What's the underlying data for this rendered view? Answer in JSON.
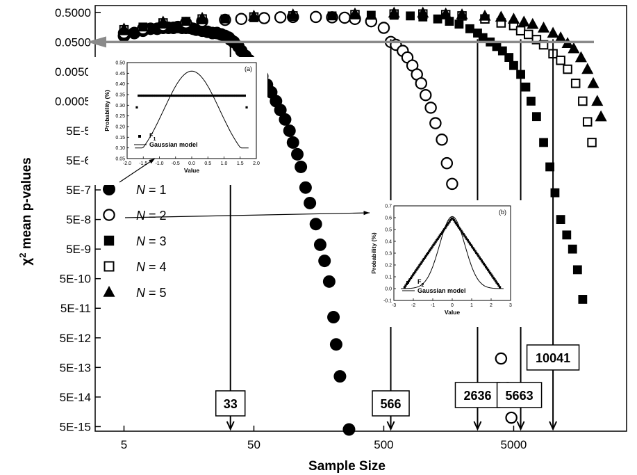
{
  "chart_data": {
    "type": "scatter",
    "xlabel": "Sample Size",
    "ylabel": "χ2 mean p-values",
    "x_scale": "log",
    "x_ticks": [
      {
        "value": 5,
        "label": "5"
      },
      {
        "value": 50,
        "label": "50"
      },
      {
        "value": 500,
        "label": "500"
      },
      {
        "value": 5000,
        "label": "5000"
      }
    ],
    "y_ticks": [
      {
        "value": 0.5,
        "label": "0.5000"
      },
      {
        "value": 0.05,
        "label": "0.0500"
      },
      {
        "value": 0.005,
        "label": "0.0050"
      },
      {
        "value": 0.0005,
        "label": "0.0005"
      },
      {
        "value": 5e-05,
        "label": "5E-5"
      },
      {
        "value": 5e-06,
        "label": "5E-6"
      },
      {
        "value": 5e-07,
        "label": "5E-7"
      },
      {
        "value": 5e-08,
        "label": "5E-8"
      },
      {
        "value": 5e-09,
        "label": "5E-9"
      },
      {
        "value": 5e-10,
        "label": "5E-10"
      },
      {
        "value": 5e-11,
        "label": "5E-11"
      },
      {
        "value": 5e-12,
        "label": "5E-12"
      },
      {
        "value": 5e-13,
        "label": "5E-13"
      },
      {
        "value": 5e-14,
        "label": "5E-14"
      },
      {
        "value": 5e-15,
        "label": "5E-15"
      }
    ],
    "series": [
      {
        "name": "N = 1",
        "marker": "circle-filled",
        "points": [
          [
            5,
            0.08
          ],
          [
            6,
            0.1
          ],
          [
            7,
            0.12
          ],
          [
            8,
            0.14
          ],
          [
            9,
            0.14
          ],
          [
            10,
            0.15
          ],
          [
            11,
            0.15
          ],
          [
            12,
            0.15
          ],
          [
            13,
            0.16
          ],
          [
            14,
            0.15
          ],
          [
            15,
            0.15
          ],
          [
            16,
            0.15
          ],
          [
            17,
            0.14
          ],
          [
            18,
            0.13
          ],
          [
            19,
            0.13
          ],
          [
            20,
            0.12
          ],
          [
            22,
            0.11
          ],
          [
            24,
            0.1
          ],
          [
            26,
            0.1
          ],
          [
            28,
            0.09
          ],
          [
            30,
            0.08
          ],
          [
            32,
            0.07
          ],
          [
            33,
            0.06
          ],
          [
            35,
            0.05
          ],
          [
            38,
            0.035
          ],
          [
            40,
            0.025
          ],
          [
            43,
            0.017
          ],
          [
            46,
            0.012
          ],
          [
            50,
            0.008
          ],
          [
            54,
            0.0055
          ],
          [
            58,
            0.0035
          ],
          [
            63,
            0.0018
          ],
          [
            68,
            0.001
          ],
          [
            74,
            0.0005
          ],
          [
            80,
            0.00025
          ],
          [
            87,
            0.00012
          ],
          [
            94,
            5e-05
          ],
          [
            100,
            2e-05
          ],
          [
            108,
            8e-06
          ],
          [
            115,
            3e-06
          ],
          [
            125,
            6e-07
          ],
          [
            135,
            1.8e-07
          ],
          [
            150,
            3.5e-08
          ],
          [
            162,
            7e-09
          ],
          [
            175,
            2e-09
          ],
          [
            190,
            4e-10
          ],
          [
            205,
            2.5e-11
          ],
          [
            215,
            3e-12
          ],
          [
            230,
            2.5e-13
          ],
          [
            270,
            4e-15
          ]
        ]
      },
      {
        "name": "N = 2",
        "marker": "circle-open",
        "points": [
          [
            5,
            0.1
          ],
          [
            7,
            0.14
          ],
          [
            10,
            0.18
          ],
          [
            15,
            0.22
          ],
          [
            20,
            0.25
          ],
          [
            30,
            0.28
          ],
          [
            40,
            0.3
          ],
          [
            60,
            0.32
          ],
          [
            80,
            0.34
          ],
          [
            100,
            0.35
          ],
          [
            150,
            0.35
          ],
          [
            200,
            0.34
          ],
          [
            250,
            0.33
          ],
          [
            300,
            0.3
          ],
          [
            400,
            0.25
          ],
          [
            500,
            0.15
          ],
          [
            566,
            0.05
          ],
          [
            620,
            0.04
          ],
          [
            700,
            0.025
          ],
          [
            760,
            0.015
          ],
          [
            830,
            0.008
          ],
          [
            900,
            0.004
          ],
          [
            970,
            0.002
          ],
          [
            1050,
            0.0008
          ],
          [
            1150,
            0.0003
          ],
          [
            1250,
            9e-05
          ],
          [
            1400,
            2.5e-05
          ],
          [
            1530,
            4e-06
          ],
          [
            1680,
            8e-07
          ],
          [
            1850,
            1e-07
          ],
          [
            2050,
            2e-08
          ],
          [
            2250,
            4e-09
          ],
          [
            2450,
            6e-10
          ],
          [
            2700,
            1e-10
          ],
          [
            3200,
            2e-11
          ],
          [
            4000,
            1e-12
          ],
          [
            4500,
            1e-13
          ],
          [
            4800,
            1e-14
          ]
        ]
      },
      {
        "name": "N = 3",
        "marker": "square-filled",
        "points": [
          [
            5,
            0.12
          ],
          [
            7,
            0.16
          ],
          [
            10,
            0.2
          ],
          [
            15,
            0.25
          ],
          [
            20,
            0.28
          ],
          [
            30,
            0.3
          ],
          [
            50,
            0.33
          ],
          [
            100,
            0.36
          ],
          [
            200,
            0.38
          ],
          [
            400,
            0.4
          ],
          [
            600,
            0.4
          ],
          [
            800,
            0.38
          ],
          [
            1000,
            0.35
          ],
          [
            1300,
            0.3
          ],
          [
            1600,
            0.25
          ],
          [
            1900,
            0.2
          ],
          [
            2300,
            0.14
          ],
          [
            2636,
            0.1
          ],
          [
            2900,
            0.07
          ],
          [
            3300,
            0.05
          ],
          [
            3700,
            0.035
          ],
          [
            4100,
            0.025
          ],
          [
            4600,
            0.015
          ],
          [
            5000,
            0.008
          ],
          [
            5663,
            0.004
          ],
          [
            6200,
            0.0015
          ],
          [
            6800,
            0.0005
          ],
          [
            7500,
            0.00015
          ],
          [
            8500,
            2e-05
          ],
          [
            9500,
            3e-06
          ],
          [
            10400,
            4e-07
          ],
          [
            11500,
            5e-08
          ],
          [
            12800,
            1.5e-08
          ],
          [
            14200,
            5e-09
          ],
          [
            15500,
            1e-09
          ],
          [
            17000,
            1e-10
          ]
        ]
      },
      {
        "name": "N = 4",
        "marker": "square-open",
        "points": [
          [
            5,
            0.13
          ],
          [
            10,
            0.22
          ],
          [
            20,
            0.3
          ],
          [
            50,
            0.35
          ],
          [
            100,
            0.38
          ],
          [
            300,
            0.42
          ],
          [
            600,
            0.44
          ],
          [
            1000,
            0.44
          ],
          [
            1500,
            0.42
          ],
          [
            2000,
            0.38
          ],
          [
            3000,
            0.3
          ],
          [
            4000,
            0.22
          ],
          [
            5000,
            0.18
          ],
          [
            5663,
            0.12
          ],
          [
            6500,
            0.09
          ],
          [
            7500,
            0.06
          ],
          [
            8500,
            0.04
          ],
          [
            10041,
            0.02
          ],
          [
            11500,
            0.012
          ],
          [
            13000,
            0.006
          ],
          [
            15000,
            0.002
          ],
          [
            17000,
            0.0005
          ],
          [
            18500,
            0.0001
          ],
          [
            20000,
            2e-05
          ]
        ]
      },
      {
        "name": "N = 5",
        "marker": "triangle-filled",
        "points": [
          [
            5,
            0.14
          ],
          [
            10,
            0.24
          ],
          [
            20,
            0.32
          ],
          [
            50,
            0.38
          ],
          [
            100,
            0.42
          ],
          [
            300,
            0.45
          ],
          [
            600,
            0.48
          ],
          [
            1000,
            0.48
          ],
          [
            1500,
            0.45
          ],
          [
            2000,
            0.42
          ],
          [
            3000,
            0.38
          ],
          [
            4000,
            0.35
          ],
          [
            5000,
            0.3
          ],
          [
            6000,
            0.24
          ],
          [
            7000,
            0.2
          ],
          [
            8500,
            0.15
          ],
          [
            10041,
            0.1
          ],
          [
            11500,
            0.07
          ],
          [
            13000,
            0.045
          ],
          [
            14500,
            0.03
          ],
          [
            16500,
            0.015
          ],
          [
            18500,
            0.006
          ],
          [
            20500,
            0.002
          ],
          [
            22000,
            0.0005
          ],
          [
            23500,
            0.00015
          ]
        ]
      }
    ],
    "legend": {
      "position": "left",
      "items": [
        {
          "var": "N",
          "eq": " = 1",
          "marker": "circle-filled"
        },
        {
          "var": "N",
          "eq": " = 2",
          "marker": "circle-open"
        },
        {
          "var": "N",
          "eq": " = 3",
          "marker": "square-filled"
        },
        {
          "var": "N",
          "eq": " = 4",
          "marker": "square-open"
        },
        {
          "var": "N",
          "eq": " = 5",
          "marker": "triangle-filled"
        }
      ]
    },
    "significance_arrow": {
      "p_value": 0.05,
      "color": "#8a8a8a"
    },
    "thresholds": [
      {
        "label": "33",
        "sample_size": 33,
        "series": "N = 1"
      },
      {
        "label": "566",
        "sample_size": 566,
        "series": "N = 2"
      },
      {
        "label": "2636",
        "sample_size": 2636,
        "series": "N = 3"
      },
      {
        "label": "5663",
        "sample_size": 5663,
        "series": "N = 4"
      },
      {
        "label": "10041",
        "sample_size": 10041,
        "series": "N = 5"
      }
    ],
    "insets": [
      {
        "panel": "(a)",
        "points_to": "N = 1",
        "xlabel": "Value",
        "ylabel": "Probability (%)",
        "xlim": [
          -2.0,
          2.0
        ],
        "ylim": [
          0.05,
          0.5
        ],
        "x_ticks": [
          "-2.0",
          "-1.5",
          "-1.0",
          "-0.5",
          "0.0",
          "0.5",
          "1.0",
          "1.5",
          "2.0"
        ],
        "y_ticks": [
          "0.05",
          "0.10",
          "0.15",
          "0.20",
          "0.25",
          "0.30",
          "0.35",
          "0.40",
          "0.45",
          "0.50"
        ],
        "legend": {
          "markers_label": "F",
          "markers_sub": "1",
          "line_label": "Gaussian model"
        },
        "markers": {
          "x_from": -1.7,
          "x_to": 1.7,
          "count": 60,
          "y": 0.345,
          "edge_y": 0.29
        },
        "model": {
          "type": "gaussian",
          "mean": 0.0,
          "sd": 0.865,
          "peak": 0.46
        }
      },
      {
        "panel": "(b)",
        "points_to": "N = 2",
        "xlabel": "Value",
        "ylabel": "Probability (%)",
        "xlim": [
          -3,
          3
        ],
        "ylim": [
          -0.1,
          0.7
        ],
        "x_ticks": [
          "-3",
          "-2",
          "-1",
          "0",
          "1",
          "2",
          "3"
        ],
        "y_ticks": [
          "-0.1",
          "0.0",
          "0.1",
          "0.2",
          "0.3",
          "0.4",
          "0.5",
          "0.6",
          "0.7"
        ],
        "legend": {
          "markers_label": "F",
          "markers_sub": "2",
          "line_label": "Gaussian model"
        },
        "markers": {
          "shape": "triangular",
          "x_from": -2.45,
          "x_to": 2.45,
          "count": 90,
          "peak": 0.6
        },
        "model": {
          "type": "gaussian",
          "mean": 0.0,
          "sd": 0.65,
          "peak": 0.61
        }
      }
    ]
  }
}
